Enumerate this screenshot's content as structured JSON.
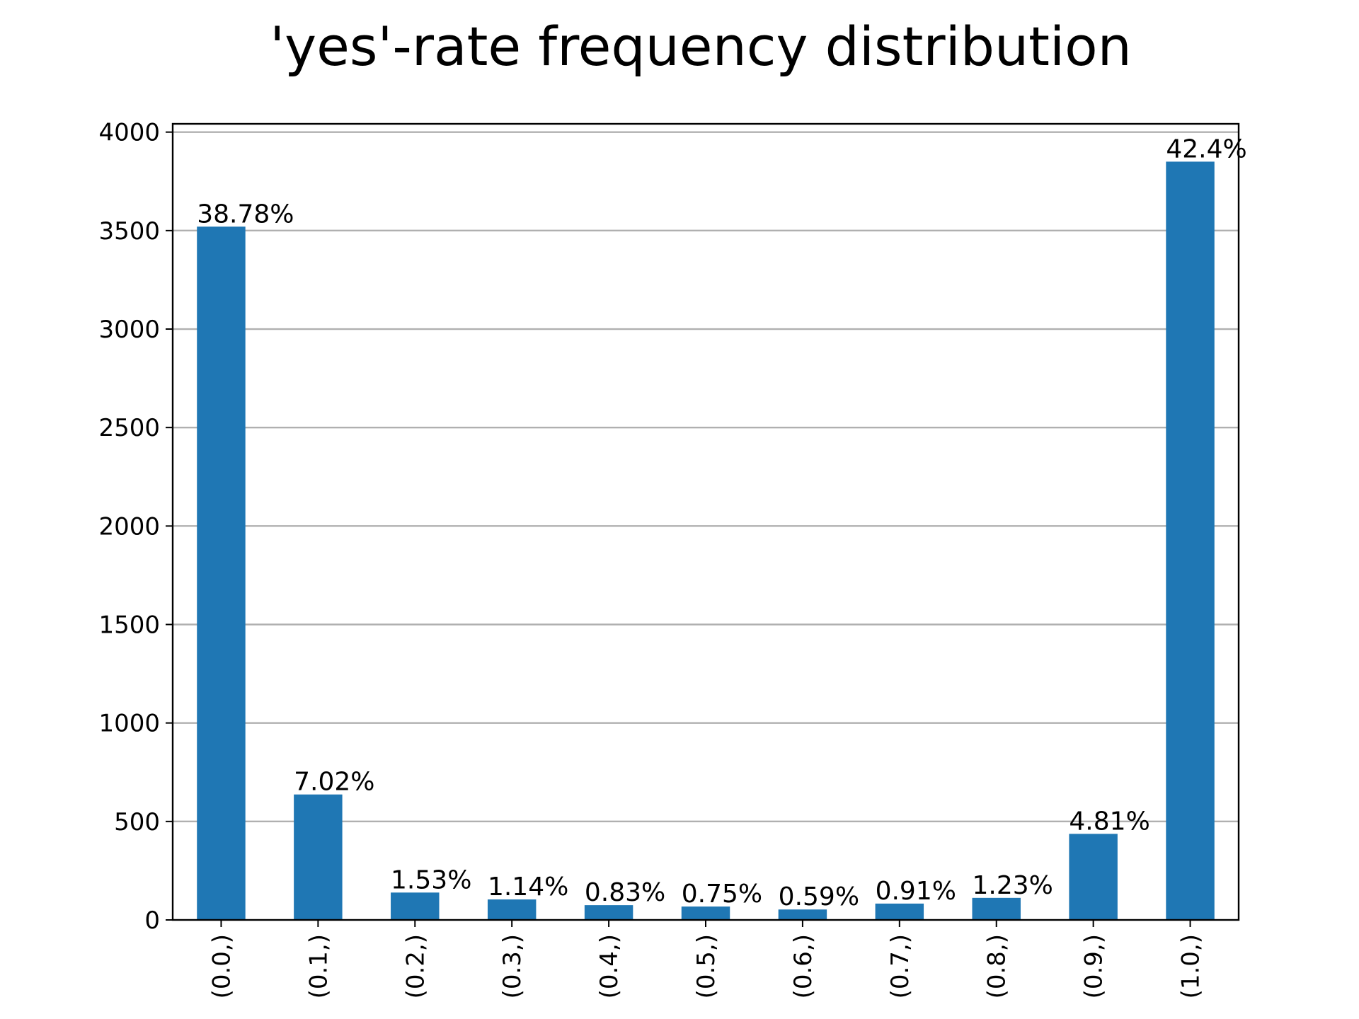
{
  "chart_data": {
    "type": "bar",
    "title": "'yes'-rate frequency distribution",
    "xlabel": "",
    "ylabel": "",
    "categories": [
      "(0.0,)",
      "(0.1,)",
      "(0.2,)",
      "(0.3,)",
      "(0.4,)",
      "(0.5,)",
      "(0.6,)",
      "(0.7,)",
      "(0.8,)",
      "(0.9,)",
      "(1.0,)"
    ],
    "values": [
      3520,
      637,
      139,
      104,
      75,
      68,
      53,
      83,
      112,
      437,
      3850
    ],
    "labels": [
      "38.78%",
      "7.02%",
      "1.53%",
      "1.14%",
      "0.83%",
      "0.75%",
      "0.59%",
      "0.91%",
      "1.23%",
      "4.81%",
      "42.4%"
    ],
    "yticks": [
      0,
      500,
      1000,
      1500,
      2000,
      2500,
      3000,
      3500,
      4000
    ],
    "ylim": [
      0,
      4042
    ],
    "grid": "horizontal",
    "bar_color": "#1f77b4"
  }
}
